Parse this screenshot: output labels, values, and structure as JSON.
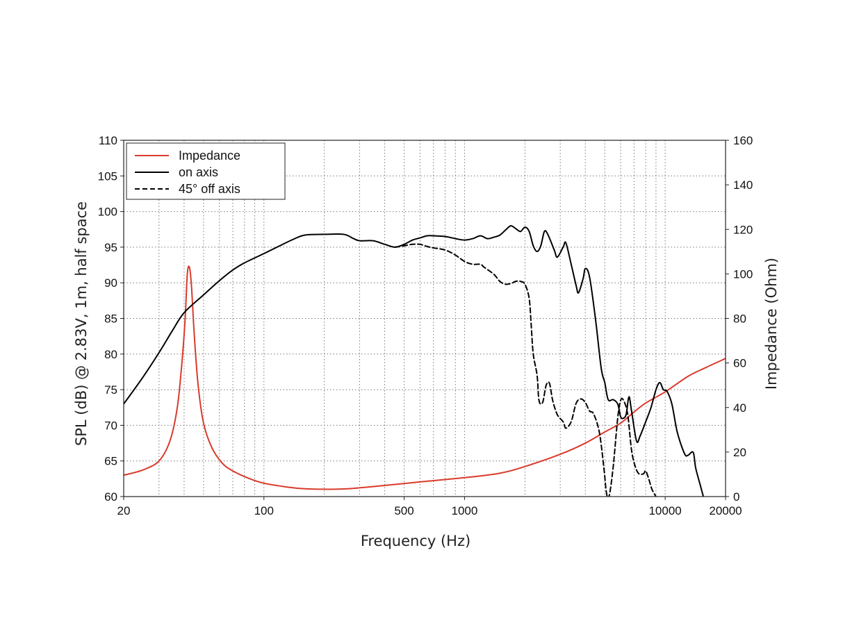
{
  "chart_data": {
    "type": "line",
    "x_scale": "log",
    "xlabel": "Frequency (Hz)",
    "ylabel": "SPL (dB) @ 2.83V, 1m, half space",
    "y2label": "Impedance (Ohm)",
    "xlim": [
      20,
      20000
    ],
    "ylim": [
      60,
      110
    ],
    "y2lim": [
      0,
      160
    ],
    "x_ticks": [
      20,
      100,
      500,
      1000,
      10000,
      20000
    ],
    "x_tick_labels": [
      "20",
      "100",
      "500",
      "1000",
      "10000",
      "20000"
    ],
    "y_ticks": [
      60,
      65,
      70,
      75,
      80,
      85,
      90,
      95,
      100,
      105,
      110
    ],
    "y2_ticks": [
      0,
      20,
      40,
      60,
      80,
      100,
      120,
      140,
      160
    ],
    "grid": true,
    "legend_position": "top-left",
    "series": [
      {
        "name": "Impedance",
        "axis": "right",
        "color": "#d93a2b",
        "dash": "solid",
        "points": [
          [
            20,
            9.6
          ],
          [
            25,
            12
          ],
          [
            30,
            16
          ],
          [
            34,
            25
          ],
          [
            37,
            40
          ],
          [
            39,
            60
          ],
          [
            40.5,
            80
          ],
          [
            41.5,
            100
          ],
          [
            42.5,
            103
          ],
          [
            43.5,
            95
          ],
          [
            45,
            72
          ],
          [
            47,
            50
          ],
          [
            50,
            33
          ],
          [
            55,
            22
          ],
          [
            62,
            15
          ],
          [
            70,
            11.5
          ],
          [
            85,
            8
          ],
          [
            100,
            6
          ],
          [
            130,
            4.3
          ],
          [
            160,
            3.5
          ],
          [
            200,
            3.3
          ],
          [
            260,
            3.5
          ],
          [
            400,
            5
          ],
          [
            600,
            6.6
          ],
          [
            1000,
            8.5
          ],
          [
            1500,
            10.5
          ],
          [
            2000,
            13.5
          ],
          [
            3000,
            19
          ],
          [
            4000,
            24
          ],
          [
            5000,
            29
          ],
          [
            6000,
            33
          ],
          [
            7000,
            38
          ],
          [
            8000,
            42
          ],
          [
            10000,
            47
          ],
          [
            13000,
            54
          ],
          [
            16000,
            58
          ],
          [
            20000,
            62
          ]
        ]
      },
      {
        "name": "on axis",
        "axis": "left",
        "color": "#000000",
        "dash": "solid",
        "points": [
          [
            20,
            73
          ],
          [
            25,
            76.8
          ],
          [
            30,
            80.2
          ],
          [
            35,
            83.3
          ],
          [
            40,
            85.8
          ],
          [
            50,
            88.3
          ],
          [
            60,
            90.3
          ],
          [
            70,
            91.8
          ],
          [
            80,
            92.8
          ],
          [
            100,
            94.1
          ],
          [
            120,
            95.2
          ],
          [
            140,
            96.1
          ],
          [
            160,
            96.7
          ],
          [
            200,
            96.8
          ],
          [
            250,
            96.8
          ],
          [
            280,
            96.2
          ],
          [
            300,
            95.9
          ],
          [
            350,
            95.9
          ],
          [
            400,
            95.4
          ],
          [
            450,
            95
          ],
          [
            500,
            95.4
          ],
          [
            550,
            96
          ],
          [
            600,
            96.3
          ],
          [
            650,
            96.6
          ],
          [
            700,
            96.6
          ],
          [
            800,
            96.5
          ],
          [
            900,
            96.2
          ],
          [
            1000,
            96
          ],
          [
            1100,
            96.2
          ],
          [
            1200,
            96.6
          ],
          [
            1300,
            96.2
          ],
          [
            1400,
            96.4
          ],
          [
            1500,
            96.7
          ],
          [
            1600,
            97.4
          ],
          [
            1700,
            98
          ],
          [
            1800,
            97.6
          ],
          [
            1900,
            97.2
          ],
          [
            2000,
            97.8
          ],
          [
            2100,
            97.2
          ],
          [
            2200,
            95.2
          ],
          [
            2300,
            94.4
          ],
          [
            2400,
            95.2
          ],
          [
            2500,
            97.2
          ],
          [
            2600,
            96.8
          ],
          [
            2800,
            94.6
          ],
          [
            2900,
            93.6
          ],
          [
            3100,
            95
          ],
          [
            3200,
            95.6
          ],
          [
            3400,
            92.6
          ],
          [
            3600,
            89.6
          ],
          [
            3700,
            88.6
          ],
          [
            3900,
            90.6
          ],
          [
            4000,
            92
          ],
          [
            4200,
            90.8
          ],
          [
            4500,
            84.8
          ],
          [
            4800,
            78
          ],
          [
            5000,
            76
          ],
          [
            5200,
            73.6
          ],
          [
            5500,
            73.6
          ],
          [
            5800,
            73
          ],
          [
            6000,
            71.2
          ],
          [
            6200,
            71
          ],
          [
            6400,
            71.6
          ],
          [
            6600,
            74
          ],
          [
            6800,
            72
          ],
          [
            7200,
            67.8
          ],
          [
            7500,
            68.5
          ],
          [
            8000,
            70.5
          ],
          [
            8500,
            72.5
          ],
          [
            9000,
            75
          ],
          [
            9400,
            76
          ],
          [
            9800,
            75
          ],
          [
            10200,
            74.8
          ],
          [
            10800,
            73
          ],
          [
            11500,
            69
          ],
          [
            12500,
            66
          ],
          [
            13000,
            65.8
          ],
          [
            13800,
            66.2
          ],
          [
            14200,
            64
          ],
          [
            15000,
            61.5
          ],
          [
            15500,
            60
          ]
        ]
      },
      {
        "name": "45° off axis",
        "axis": "left",
        "color": "#000000",
        "dash": "dashed",
        "points": [
          [
            450,
            95
          ],
          [
            500,
            95.2
          ],
          [
            550,
            95.4
          ],
          [
            600,
            95.4
          ],
          [
            650,
            95.1
          ],
          [
            700,
            94.9
          ],
          [
            800,
            94.6
          ],
          [
            900,
            93.9
          ],
          [
            1000,
            93
          ],
          [
            1100,
            92.6
          ],
          [
            1200,
            92.6
          ],
          [
            1250,
            92.2
          ],
          [
            1400,
            91.2
          ],
          [
            1500,
            90.2
          ],
          [
            1600,
            89.8
          ],
          [
            1700,
            89.9
          ],
          [
            1800,
            90.2
          ],
          [
            1900,
            90.2
          ],
          [
            2000,
            89.8
          ],
          [
            2100,
            87.8
          ],
          [
            2150,
            84
          ],
          [
            2200,
            80
          ],
          [
            2300,
            77
          ],
          [
            2350,
            73.5
          ],
          [
            2450,
            73.2
          ],
          [
            2550,
            75.6
          ],
          [
            2650,
            75.9
          ],
          [
            2750,
            73.5
          ],
          [
            2900,
            71.5
          ],
          [
            3100,
            70.5
          ],
          [
            3200,
            69.6
          ],
          [
            3400,
            70.5
          ],
          [
            3600,
            73.1
          ],
          [
            3800,
            73.7
          ],
          [
            4000,
            73.2
          ],
          [
            4200,
            72
          ],
          [
            4400,
            71.6
          ],
          [
            4700,
            69
          ],
          [
            4950,
            64
          ],
          [
            5100,
            60.5
          ],
          [
            5250,
            60
          ],
          [
            5500,
            64
          ],
          [
            5800,
            71
          ],
          [
            6000,
            73.5
          ],
          [
            6200,
            73.5
          ],
          [
            6500,
            71.6
          ],
          [
            6800,
            66.5
          ],
          [
            7100,
            64.2
          ],
          [
            7400,
            63.2
          ],
          [
            7800,
            63.2
          ],
          [
            8000,
            63.6
          ],
          [
            8300,
            62.4
          ],
          [
            8600,
            61
          ],
          [
            9000,
            60
          ]
        ]
      }
    ]
  }
}
